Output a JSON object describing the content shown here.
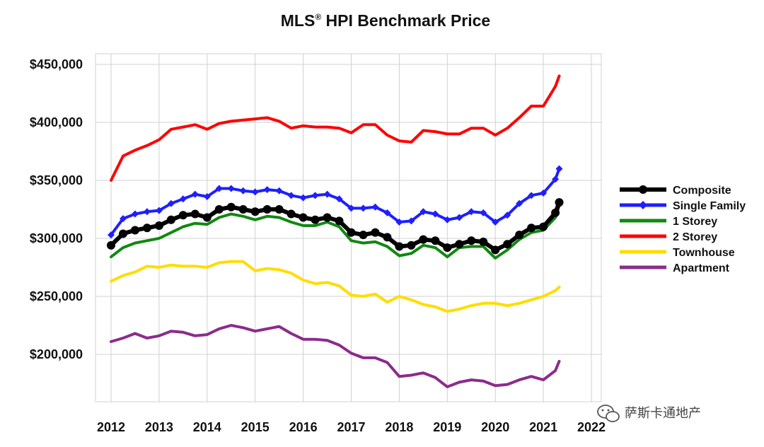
{
  "chart_data": {
    "type": "line",
    "title": "MLS",
    "title_mark": "®",
    "title_rest": " HPI Benchmark Price",
    "x_ticks": [
      "2012",
      "2013",
      "2014",
      "2015",
      "2016",
      "2017",
      "2018",
      "2019",
      "2020",
      "2021",
      "2022"
    ],
    "xlim": [
      2012,
      2022
    ],
    "y_ticks": [
      {
        "value": 200000,
        "label": "$200,000"
      },
      {
        "value": 250000,
        "label": "$250,000"
      },
      {
        "value": 300000,
        "label": "$300,000"
      },
      {
        "value": 350000,
        "label": "$350,000"
      },
      {
        "value": 400000,
        "label": "$400,000"
      },
      {
        "value": 450000,
        "label": "$450,000"
      }
    ],
    "ylim": [
      160000,
      460000
    ],
    "grid": true,
    "legend_position": "right",
    "x": [
      2012.0,
      2012.25,
      2012.5,
      2012.75,
      2013.0,
      2013.25,
      2013.5,
      2013.75,
      2014.0,
      2014.25,
      2014.5,
      2014.75,
      2015.0,
      2015.25,
      2015.5,
      2015.75,
      2016.0,
      2016.25,
      2016.5,
      2016.75,
      2017.0,
      2017.25,
      2017.5,
      2017.75,
      2018.0,
      2018.25,
      2018.5,
      2018.75,
      2019.0,
      2019.25,
      2019.5,
      2019.75,
      2020.0,
      2020.25,
      2020.5,
      2020.75,
      2021.0,
      2021.25,
      2021.33
    ],
    "series": [
      {
        "name": "Composite",
        "color": "#000000",
        "marker": "circle",
        "values": [
          294000,
          304000,
          307000,
          309000,
          311000,
          316000,
          320000,
          321000,
          318000,
          325000,
          327000,
          325000,
          323000,
          325000,
          325000,
          321000,
          318000,
          316000,
          318000,
          315000,
          305000,
          303000,
          305000,
          301000,
          293000,
          294000,
          299000,
          298000,
          292000,
          295000,
          298000,
          297000,
          290000,
          295000,
          303000,
          309000,
          310000,
          322000,
          331000
        ]
      },
      {
        "name": "Single Family",
        "color": "#1f1fff",
        "marker": "diamond",
        "values": [
          303000,
          317000,
          321000,
          323000,
          324000,
          330000,
          334000,
          338000,
          336000,
          343000,
          343000,
          341000,
          340000,
          342000,
          341000,
          337000,
          335000,
          337000,
          338000,
          334000,
          326000,
          326000,
          327000,
          322000,
          314000,
          315000,
          323000,
          321000,
          316000,
          318000,
          323000,
          322000,
          314000,
          320000,
          330000,
          337000,
          339000,
          351000,
          360000
        ]
      },
      {
        "name": "1 Storey",
        "color": "#118811",
        "marker": "none",
        "values": [
          284000,
          292000,
          296000,
          298000,
          300000,
          305000,
          310000,
          313000,
          312000,
          318000,
          321000,
          319000,
          316000,
          319000,
          318000,
          314000,
          311000,
          311000,
          314000,
          310000,
          298000,
          296000,
          297000,
          293000,
          285000,
          287000,
          294000,
          292000,
          284000,
          292000,
          293000,
          293000,
          283000,
          290000,
          299000,
          305000,
          307000,
          318000,
          328000
        ]
      },
      {
        "name": "2 Storey",
        "color": "#ff0000",
        "marker": "none",
        "values": [
          350000,
          371000,
          376000,
          380000,
          385000,
          394000,
          396000,
          398000,
          394000,
          399000,
          401000,
          402000,
          403000,
          404000,
          401000,
          395000,
          397000,
          396000,
          396000,
          395000,
          391000,
          398000,
          398000,
          389000,
          384000,
          383000,
          393000,
          392000,
          390000,
          390000,
          395000,
          395000,
          389000,
          395000,
          404000,
          414000,
          414000,
          431000,
          440000
        ]
      },
      {
        "name": "Townhouse",
        "color": "#ffdd00",
        "marker": "none",
        "values": [
          263000,
          268000,
          271000,
          276000,
          275000,
          277000,
          276000,
          276000,
          275000,
          279000,
          280000,
          280000,
          272000,
          274000,
          273000,
          270000,
          264000,
          261000,
          262000,
          259000,
          251000,
          250000,
          252000,
          245000,
          250000,
          247000,
          243000,
          241000,
          237000,
          239000,
          242000,
          244000,
          244000,
          242000,
          244000,
          247000,
          250000,
          255000,
          258000
        ]
      },
      {
        "name": "Apartment",
        "color": "#8b2c8b",
        "marker": "none",
        "values": [
          211000,
          214000,
          218000,
          214000,
          216000,
          220000,
          219000,
          216000,
          217000,
          222000,
          225000,
          223000,
          220000,
          222000,
          224000,
          218000,
          213000,
          213000,
          212000,
          208000,
          201000,
          197000,
          197000,
          193000,
          181000,
          182000,
          184000,
          180000,
          172000,
          176000,
          178000,
          177000,
          173000,
          174000,
          178000,
          181000,
          178000,
          186000,
          194000
        ]
      }
    ]
  },
  "watermark": {
    "text": "萨斯卡通地产",
    "icon": "wechat-icon"
  }
}
